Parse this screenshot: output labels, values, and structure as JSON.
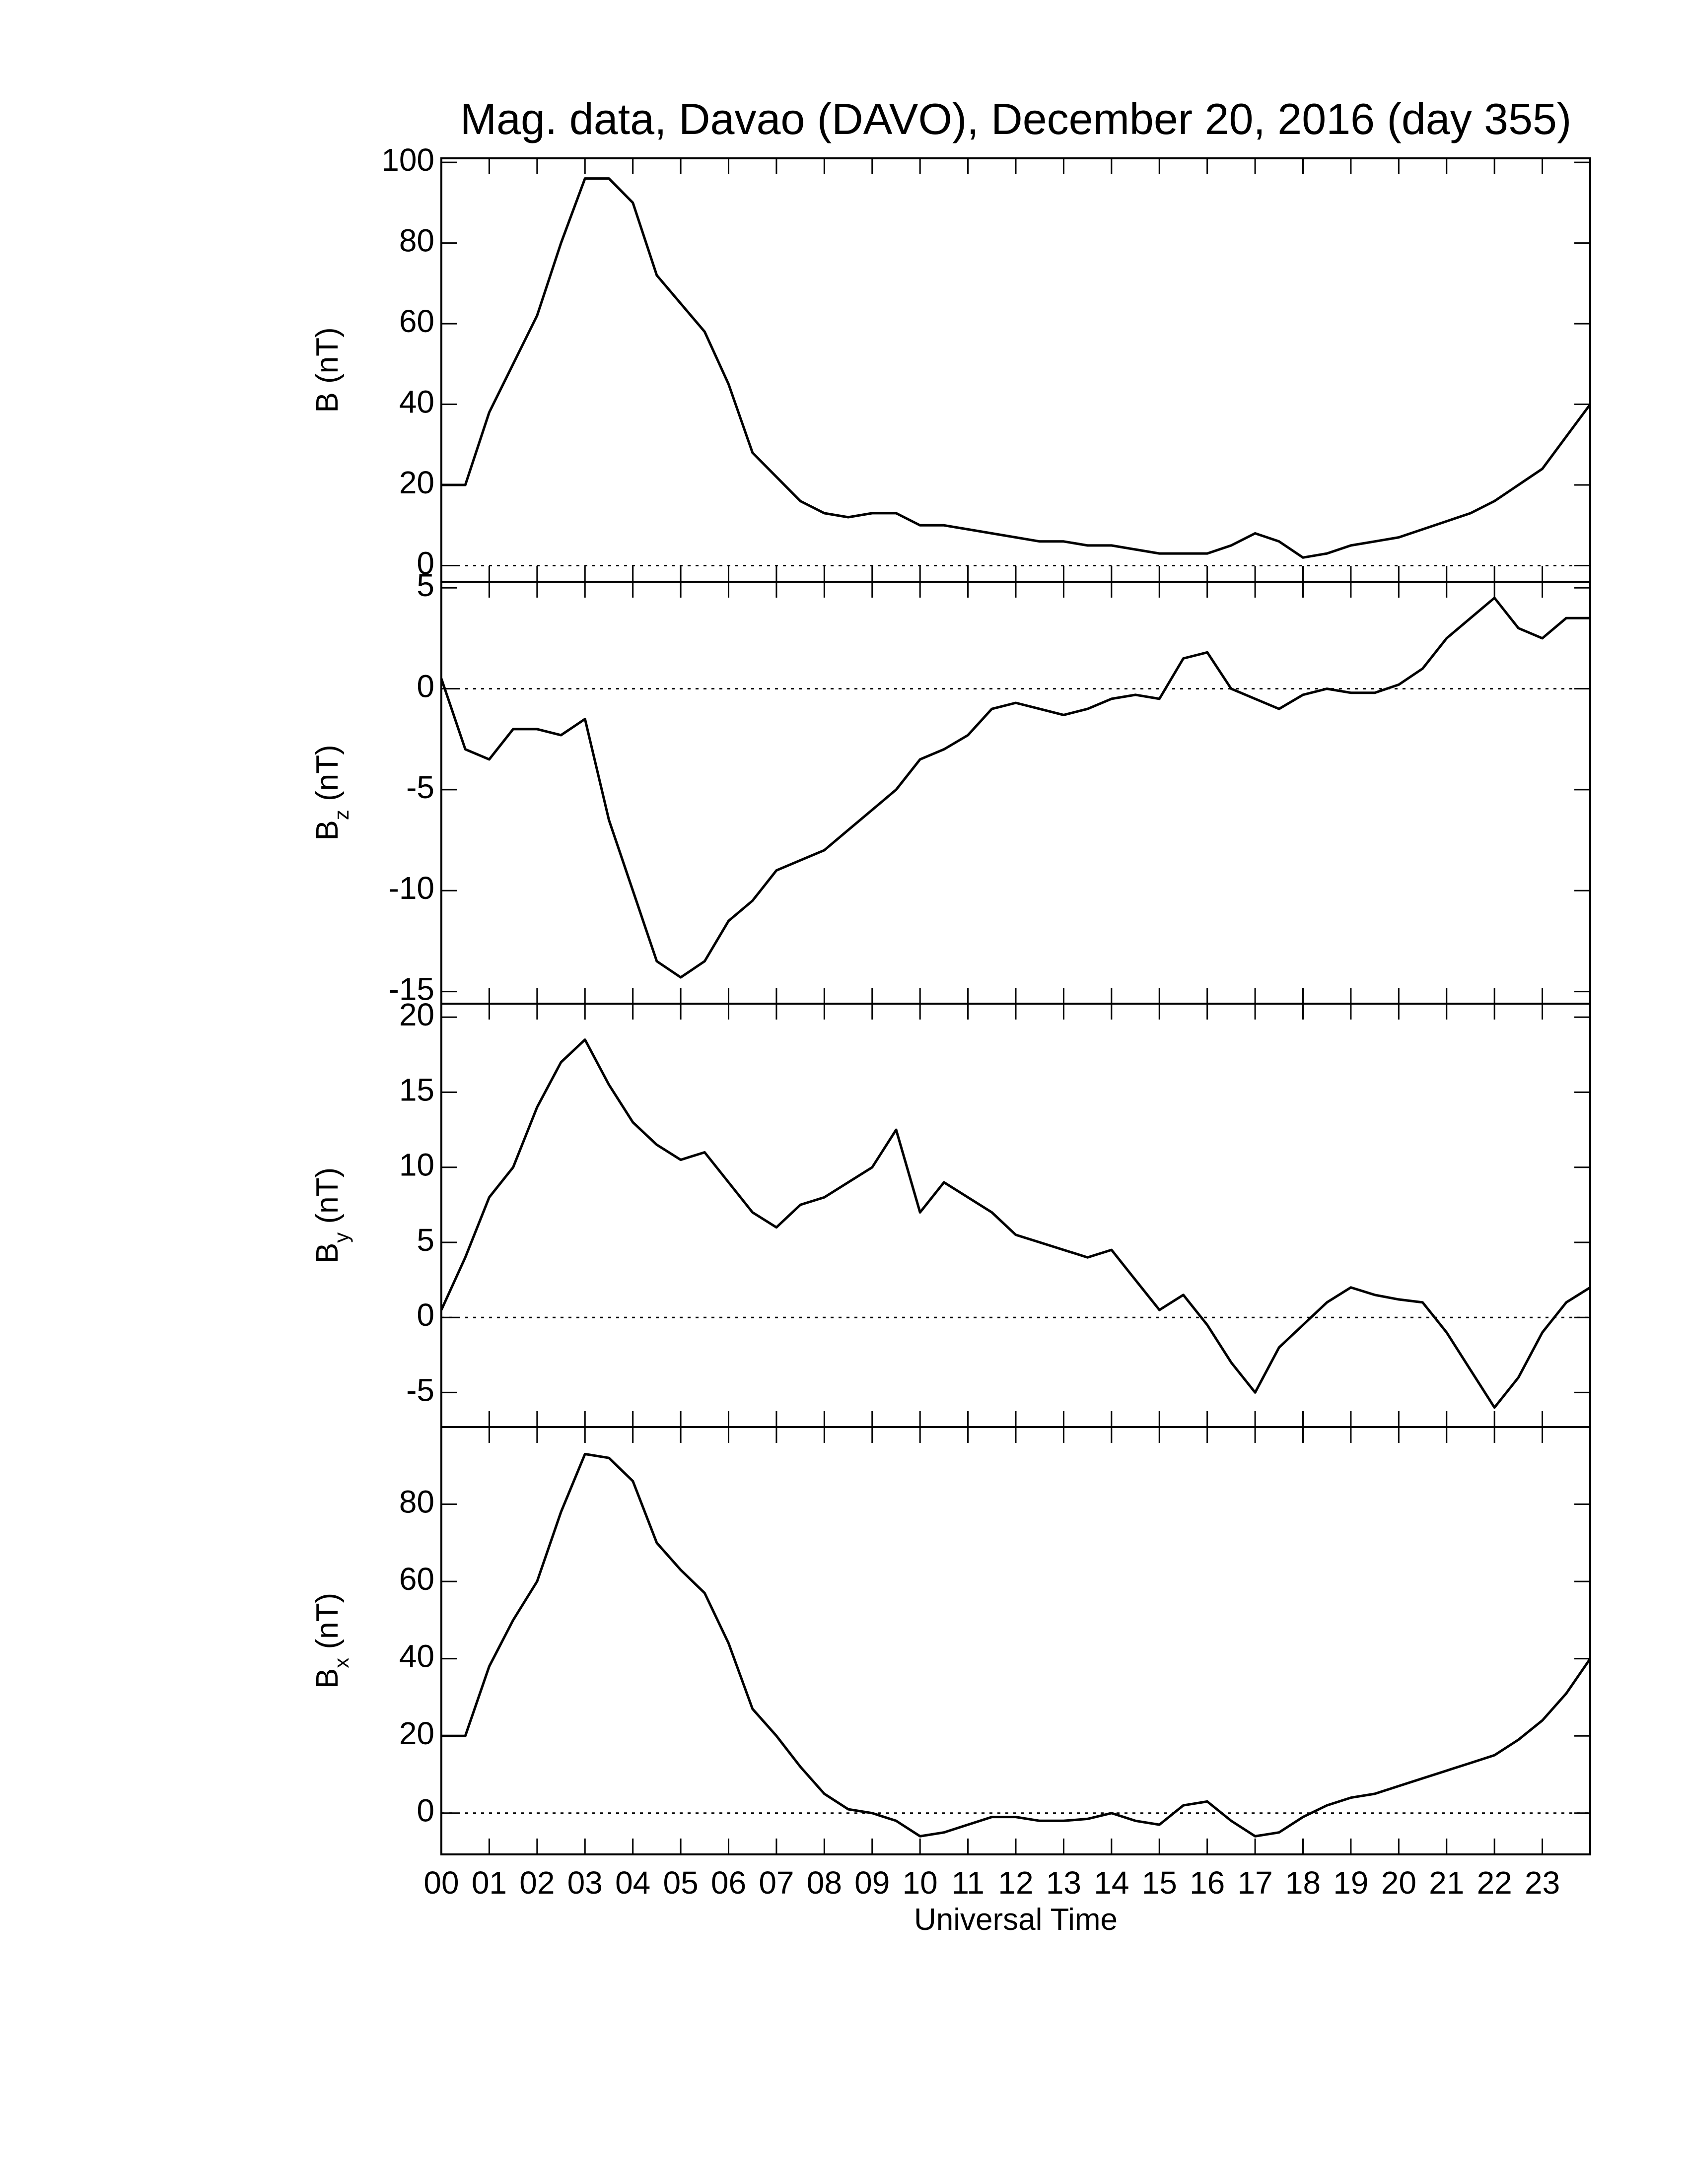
{
  "chart_data": [
    {
      "type": "line",
      "title": "Mag. data, Davao (DAVO), December 20, 2016 (day 355)",
      "ylabel": "B",
      "ylabel_unit": "(nT)",
      "color": "#000000",
      "hline": 0,
      "xlim": [
        0,
        24
      ],
      "ylim": [
        -4,
        101
      ],
      "yticks": [
        0,
        20,
        40,
        60,
        80,
        100
      ],
      "x": [
        0,
        0.5,
        1,
        1.5,
        2,
        2.5,
        3,
        3.5,
        4,
        4.5,
        5,
        5.5,
        6,
        6.5,
        7,
        7.5,
        8,
        8.5,
        9,
        9.5,
        10,
        10.5,
        11,
        11.5,
        12,
        12.5,
        13,
        13.5,
        14,
        14.5,
        15,
        15.5,
        16,
        16.5,
        17,
        17.5,
        18,
        18.5,
        19,
        19.5,
        20,
        20.5,
        21,
        21.5,
        22,
        22.5,
        23,
        23.5,
        24
      ],
      "values": [
        20,
        20,
        38,
        50,
        62,
        80,
        96,
        96,
        90,
        72,
        65,
        58,
        45,
        28,
        22,
        16,
        13,
        12,
        13,
        13,
        10,
        10,
        9,
        8,
        7,
        6,
        6,
        5,
        5,
        4,
        3,
        3,
        3,
        5,
        8,
        6,
        2,
        3,
        5,
        6,
        7,
        9,
        11,
        13,
        16,
        20,
        24,
        32,
        40
      ]
    },
    {
      "type": "line",
      "ylabel": "B",
      "ylabel_sub": "z",
      "ylabel_unit": "(nT)",
      "color": "#000000",
      "hline": 0,
      "xlim": [
        0,
        24
      ],
      "ylim": [
        -15.6,
        5.3
      ],
      "yticks": [
        -15,
        -10,
        -5,
        0,
        5
      ],
      "x": [
        0,
        0.5,
        1,
        1.5,
        2,
        2.5,
        3,
        3.5,
        4,
        4.5,
        5,
        5.5,
        6,
        6.5,
        7,
        7.5,
        8,
        8.5,
        9,
        9.5,
        10,
        10.5,
        11,
        11.5,
        12,
        12.5,
        13,
        13.5,
        14,
        14.5,
        15,
        15.5,
        16,
        16.5,
        17,
        17.5,
        18,
        18.5,
        19,
        19.5,
        20,
        20.5,
        21,
        21.5,
        22,
        22.5,
        23,
        23.5,
        24
      ],
      "values": [
        0.5,
        -3,
        -3.5,
        -2,
        -2,
        -2.3,
        -1.5,
        -6.5,
        -10,
        -13.5,
        -14.3,
        -13.5,
        -11.5,
        -10.5,
        -9,
        -8.5,
        -8,
        -7,
        -6,
        -5,
        -3.5,
        -3,
        -2.3,
        -1,
        -0.7,
        -1,
        -1.3,
        -1,
        -0.5,
        -0.3,
        -0.5,
        1.5,
        1.8,
        0,
        -0.5,
        -1,
        -0.3,
        0,
        -0.2,
        -0.2,
        0.2,
        1,
        2.5,
        3.5,
        4.5,
        3,
        2.5,
        3.5,
        3.5
      ]
    },
    {
      "type": "line",
      "ylabel": "B",
      "ylabel_sub": "y",
      "ylabel_unit": "(nT)",
      "color": "#000000",
      "hline": 0,
      "xlim": [
        0,
        24
      ],
      "ylim": [
        -7.3,
        20.9
      ],
      "yticks": [
        -5,
        0,
        5,
        10,
        15,
        20
      ],
      "x": [
        0,
        0.5,
        1,
        1.5,
        2,
        2.5,
        3,
        3.5,
        4,
        4.5,
        5,
        5.5,
        6,
        6.5,
        7,
        7.5,
        8,
        8.5,
        9,
        9.5,
        10,
        10.5,
        11,
        11.5,
        12,
        12.5,
        13,
        13.5,
        14,
        14.5,
        15,
        15.5,
        16,
        16.5,
        17,
        17.5,
        18,
        18.5,
        19,
        19.5,
        20,
        20.5,
        21,
        21.5,
        22,
        22.5,
        23,
        23.5,
        24
      ],
      "values": [
        0.5,
        4,
        8,
        10,
        14,
        17,
        18.5,
        15.5,
        13,
        11.5,
        10.5,
        11,
        9,
        7,
        6,
        7.5,
        8,
        9,
        10,
        12.5,
        7,
        9,
        8,
        7,
        5.5,
        5,
        4.5,
        4,
        4.5,
        2.5,
        0.5,
        1.5,
        -0.5,
        -3,
        -5,
        -2,
        -0.5,
        1,
        2,
        1.5,
        1.2,
        1,
        -1,
        -3.5,
        -6,
        -4,
        -1,
        1,
        2
      ]
    },
    {
      "type": "line",
      "ylabel": "B",
      "ylabel_sub": "x",
      "ylabel_unit": "(nT)",
      "xlabel": "Universal Time",
      "color": "#000000",
      "hline": 0,
      "xlim": [
        0,
        24
      ],
      "ylim": [
        -10.7,
        100
      ],
      "yticks": [
        0,
        20,
        40,
        60,
        80
      ],
      "xticks": [
        {
          "value": 0,
          "label": "00"
        },
        {
          "value": 1,
          "label": "01"
        },
        {
          "value": 2,
          "label": "02"
        },
        {
          "value": 3,
          "label": "03"
        },
        {
          "value": 4,
          "label": "04"
        },
        {
          "value": 5,
          "label": "05"
        },
        {
          "value": 6,
          "label": "06"
        },
        {
          "value": 7,
          "label": "07"
        },
        {
          "value": 8,
          "label": "08"
        },
        {
          "value": 9,
          "label": "09"
        },
        {
          "value": 10,
          "label": "10"
        },
        {
          "value": 11,
          "label": "11"
        },
        {
          "value": 12,
          "label": "12"
        },
        {
          "value": 13,
          "label": "13"
        },
        {
          "value": 14,
          "label": "14"
        },
        {
          "value": 15,
          "label": "15"
        },
        {
          "value": 16,
          "label": "16"
        },
        {
          "value": 17,
          "label": "17"
        },
        {
          "value": 18,
          "label": "18"
        },
        {
          "value": 19,
          "label": "19"
        },
        {
          "value": 20,
          "label": "20"
        },
        {
          "value": 21,
          "label": "21"
        },
        {
          "value": 22,
          "label": "22"
        },
        {
          "value": 23,
          "label": "23"
        }
      ],
      "x": [
        0,
        0.5,
        1,
        1.5,
        2,
        2.5,
        3,
        3.5,
        4,
        4.5,
        5,
        5.5,
        6,
        6.5,
        7,
        7.5,
        8,
        8.5,
        9,
        9.5,
        10,
        10.5,
        11,
        11.5,
        12,
        12.5,
        13,
        13.5,
        14,
        14.5,
        15,
        15.5,
        16,
        16.5,
        17,
        17.5,
        18,
        18.5,
        19,
        19.5,
        20,
        20.5,
        21,
        21.5,
        22,
        22.5,
        23,
        23.5,
        24
      ],
      "values": [
        20,
        20,
        38,
        50,
        60,
        78,
        93,
        92,
        86,
        70,
        63,
        57,
        44,
        27,
        20,
        12,
        5,
        1,
        0,
        -2,
        -6,
        -5,
        -3,
        -1,
        -1,
        -2,
        -2,
        -1.5,
        0,
        -2,
        -3,
        2,
        3,
        -2,
        -6,
        -5,
        -1,
        2,
        4,
        5,
        7,
        9,
        11,
        13,
        15,
        19,
        24,
        31,
        40
      ]
    }
  ]
}
